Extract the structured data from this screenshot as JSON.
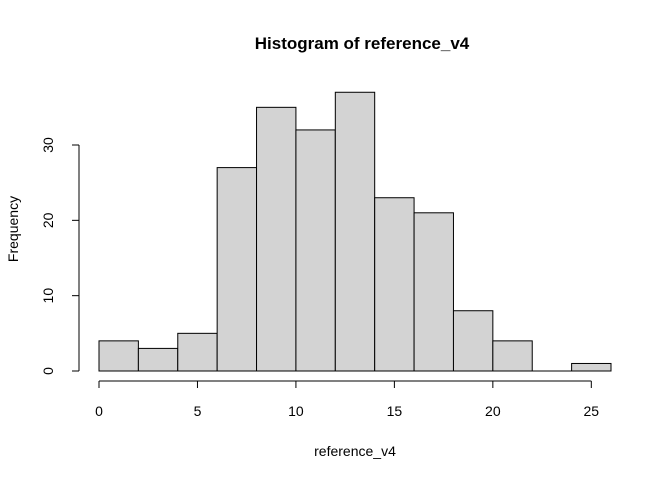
{
  "chart_data": {
    "type": "bar",
    "title": "Histogram of reference_v4",
    "xlabel": "reference_v4",
    "ylabel": "Frequency",
    "bins": [
      {
        "start": 0,
        "end": 2,
        "count": 4
      },
      {
        "start": 2,
        "end": 4,
        "count": 3
      },
      {
        "start": 4,
        "end": 6,
        "count": 5
      },
      {
        "start": 6,
        "end": 8,
        "count": 27
      },
      {
        "start": 8,
        "end": 10,
        "count": 35
      },
      {
        "start": 10,
        "end": 12,
        "count": 32
      },
      {
        "start": 12,
        "end": 14,
        "count": 37
      },
      {
        "start": 14,
        "end": 16,
        "count": 23
      },
      {
        "start": 16,
        "end": 18,
        "count": 21
      },
      {
        "start": 18,
        "end": 20,
        "count": 8
      },
      {
        "start": 20,
        "end": 22,
        "count": 4
      },
      {
        "start": 22,
        "end": 24,
        "count": 0
      },
      {
        "start": 24,
        "end": 26,
        "count": 1
      }
    ],
    "xlim": [
      0,
      26
    ],
    "ylim": [
      0,
      37
    ],
    "x_ticks": [
      "0",
      "5",
      "10",
      "15",
      "20",
      "25"
    ],
    "y_ticks": [
      "0",
      "10",
      "20",
      "30"
    ],
    "grid": false,
    "bar_color": "#d3d3d3",
    "edge_color": "#000000"
  }
}
